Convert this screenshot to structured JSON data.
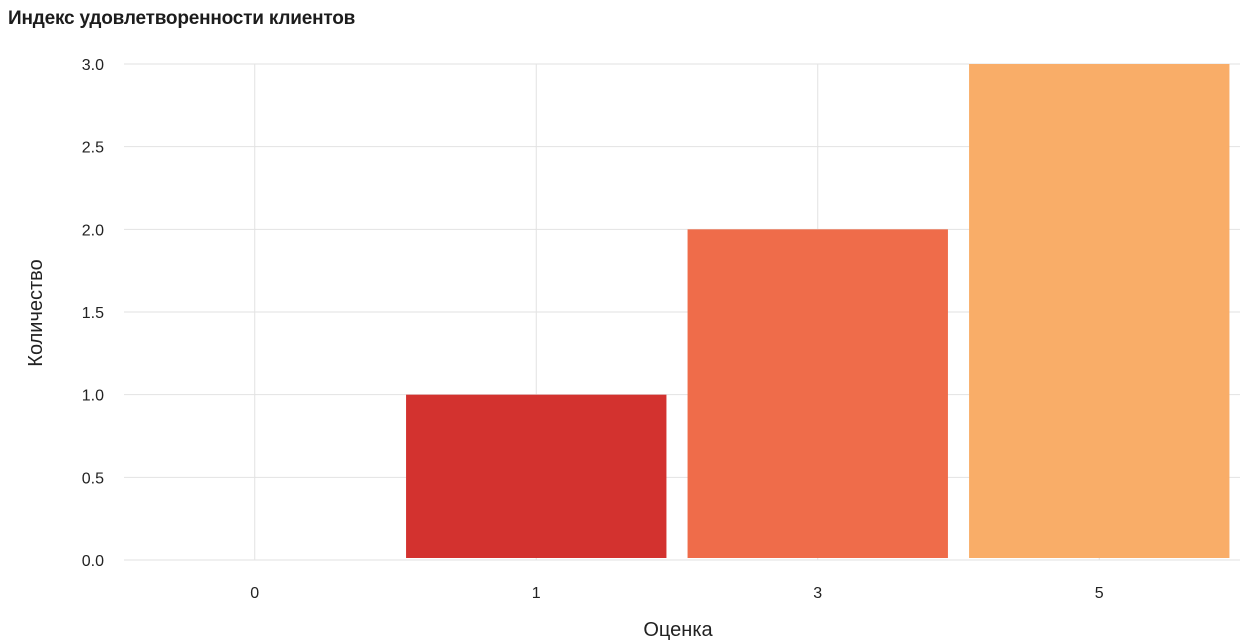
{
  "chart_data": {
    "type": "bar",
    "title": "Индекс удовлетворенности клиентов",
    "xlabel": "Оценка",
    "ylabel": "Количество",
    "categories": [
      "0",
      "1",
      "3",
      "5"
    ],
    "values": [
      0,
      1,
      2,
      3
    ],
    "colors": [
      "#d7301f",
      "#d3322f",
      "#ef6c4a",
      "#f9ad68"
    ],
    "ylim": [
      0,
      3
    ],
    "yticks": [
      "0.0",
      "0.5",
      "1.0",
      "1.5",
      "2.0",
      "2.5",
      "3.0"
    ],
    "grid": true,
    "legend": "none"
  }
}
